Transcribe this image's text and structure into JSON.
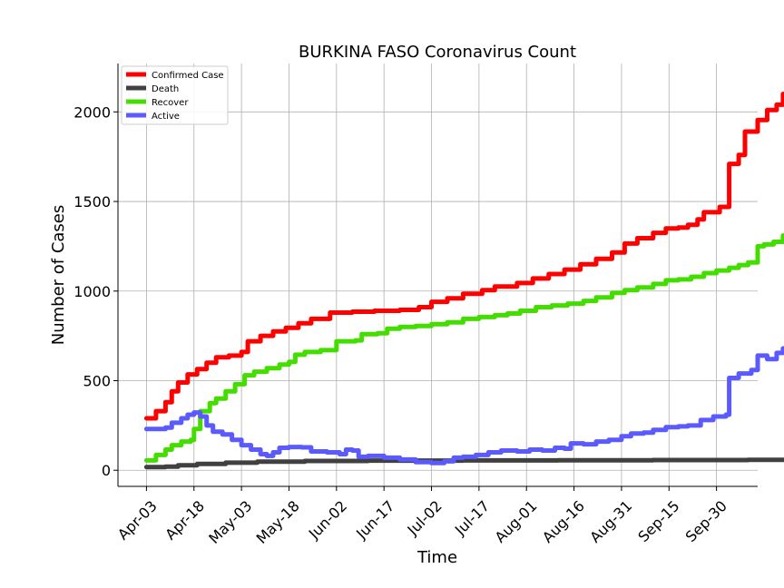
{
  "chart_data": {
    "type": "line",
    "title": "BURKINA FASO Coronavirus Count",
    "xlabel": "Time",
    "ylabel": "Number of Cases",
    "x_ticks": [
      "Apr-03",
      "Apr-18",
      "May-03",
      "May-18",
      "Jun-02",
      "Jun-17",
      "Jul-02",
      "Jul-17",
      "Aug-01",
      "Aug-16",
      "Aug-31",
      "Sep-15",
      "Sep-30"
    ],
    "y_ticks": [
      0,
      500,
      1000,
      1500,
      2000
    ],
    "ylim": [
      -90,
      2270
    ],
    "x_range_days": [
      -9,
      193
    ],
    "grid": true,
    "legend_position": "top-left",
    "series": [
      {
        "name": "Confirmed Case",
        "color": "#ff0000",
        "points": [
          [
            0,
            290
          ],
          [
            3,
            330
          ],
          [
            6,
            380
          ],
          [
            8,
            440
          ],
          [
            10,
            490
          ],
          [
            13,
            535
          ],
          [
            16,
            565
          ],
          [
            19,
            600
          ],
          [
            22,
            630
          ],
          [
            26,
            640
          ],
          [
            30,
            660
          ],
          [
            32,
            720
          ],
          [
            36,
            750
          ],
          [
            40,
            775
          ],
          [
            44,
            795
          ],
          [
            48,
            820
          ],
          [
            52,
            845
          ],
          [
            58,
            880
          ],
          [
            65,
            885
          ],
          [
            72,
            890
          ],
          [
            80,
            895
          ],
          [
            86,
            910
          ],
          [
            90,
            940
          ],
          [
            95,
            960
          ],
          [
            100,
            985
          ],
          [
            106,
            1005
          ],
          [
            110,
            1025
          ],
          [
            117,
            1045
          ],
          [
            122,
            1070
          ],
          [
            127,
            1095
          ],
          [
            132,
            1120
          ],
          [
            137,
            1150
          ],
          [
            142,
            1180
          ],
          [
            147,
            1215
          ],
          [
            151,
            1265
          ],
          [
            155,
            1295
          ],
          [
            160,
            1325
          ],
          [
            164,
            1350
          ],
          [
            168,
            1355
          ],
          [
            171,
            1370
          ],
          [
            174,
            1400
          ],
          [
            176,
            1440
          ],
          [
            181,
            1470
          ],
          [
            184,
            1500
          ],
          [
            184,
            1710
          ],
          [
            187,
            1760
          ],
          [
            189,
            1890
          ],
          [
            193,
            1955
          ],
          [
            196,
            2010
          ],
          [
            199,
            2040
          ],
          [
            201,
            2100
          ],
          [
            203,
            2155
          ]
        ]
      },
      {
        "name": "Death",
        "color": "#404040",
        "points": [
          [
            0,
            18
          ],
          [
            6,
            20
          ],
          [
            10,
            28
          ],
          [
            16,
            35
          ],
          [
            25,
            42
          ],
          [
            35,
            48
          ],
          [
            50,
            52
          ],
          [
            70,
            54
          ],
          [
            100,
            55
          ],
          [
            130,
            56
          ],
          [
            160,
            57
          ],
          [
            190,
            58
          ],
          [
            203,
            60
          ]
        ]
      },
      {
        "name": "Recover",
        "color": "#44dd00",
        "points": [
          [
            0,
            55
          ],
          [
            3,
            85
          ],
          [
            6,
            115
          ],
          [
            8,
            140
          ],
          [
            11,
            160
          ],
          [
            14,
            170
          ],
          [
            15,
            230
          ],
          [
            17,
            330
          ],
          [
            20,
            375
          ],
          [
            22,
            400
          ],
          [
            25,
            440
          ],
          [
            28,
            480
          ],
          [
            31,
            530
          ],
          [
            34,
            550
          ],
          [
            38,
            570
          ],
          [
            42,
            590
          ],
          [
            45,
            605
          ],
          [
            47,
            645
          ],
          [
            50,
            660
          ],
          [
            55,
            670
          ],
          [
            60,
            720
          ],
          [
            66,
            725
          ],
          [
            68,
            760
          ],
          [
            73,
            765
          ],
          [
            76,
            790
          ],
          [
            80,
            800
          ],
          [
            85,
            805
          ],
          [
            90,
            815
          ],
          [
            95,
            825
          ],
          [
            100,
            845
          ],
          [
            105,
            855
          ],
          [
            110,
            865
          ],
          [
            114,
            875
          ],
          [
            118,
            890
          ],
          [
            123,
            910
          ],
          [
            128,
            920
          ],
          [
            133,
            930
          ],
          [
            138,
            945
          ],
          [
            142,
            965
          ],
          [
            147,
            990
          ],
          [
            151,
            1005
          ],
          [
            155,
            1020
          ],
          [
            160,
            1040
          ],
          [
            164,
            1060
          ],
          [
            168,
            1065
          ],
          [
            172,
            1080
          ],
          [
            176,
            1100
          ],
          [
            180,
            1115
          ],
          [
            184,
            1130
          ],
          [
            187,
            1145
          ],
          [
            190,
            1160
          ],
          [
            193,
            1250
          ],
          [
            195,
            1260
          ],
          [
            198,
            1275
          ],
          [
            201,
            1310
          ],
          [
            203,
            1395
          ]
        ]
      },
      {
        "name": "Active",
        "color": "#5a5aff",
        "points": [
          [
            0,
            230
          ],
          [
            6,
            238
          ],
          [
            8,
            265
          ],
          [
            11,
            290
          ],
          [
            13,
            310
          ],
          [
            15,
            322
          ],
          [
            17,
            300
          ],
          [
            19,
            250
          ],
          [
            21,
            215
          ],
          [
            24,
            200
          ],
          [
            27,
            170
          ],
          [
            30,
            140
          ],
          [
            33,
            115
          ],
          [
            36,
            90
          ],
          [
            38,
            80
          ],
          [
            40,
            100
          ],
          [
            42,
            125
          ],
          [
            45,
            130
          ],
          [
            49,
            128
          ],
          [
            52,
            105
          ],
          [
            57,
            100
          ],
          [
            61,
            90
          ],
          [
            63,
            115
          ],
          [
            65,
            110
          ],
          [
            67,
            75
          ],
          [
            70,
            80
          ],
          [
            75,
            70
          ],
          [
            80,
            60
          ],
          [
            85,
            45
          ],
          [
            90,
            40
          ],
          [
            94,
            50
          ],
          [
            97,
            70
          ],
          [
            100,
            75
          ],
          [
            104,
            85
          ],
          [
            108,
            100
          ],
          [
            112,
            110
          ],
          [
            117,
            105
          ],
          [
            121,
            115
          ],
          [
            125,
            110
          ],
          [
            129,
            125
          ],
          [
            132,
            120
          ],
          [
            134,
            150
          ],
          [
            138,
            145
          ],
          [
            142,
            160
          ],
          [
            146,
            170
          ],
          [
            150,
            190
          ],
          [
            153,
            205
          ],
          [
            157,
            210
          ],
          [
            160,
            225
          ],
          [
            164,
            240
          ],
          [
            168,
            245
          ],
          [
            171,
            250
          ],
          [
            175,
            280
          ],
          [
            179,
            300
          ],
          [
            183,
            310
          ],
          [
            184,
            330
          ],
          [
            184,
            515
          ],
          [
            187,
            540
          ],
          [
            191,
            560
          ],
          [
            193,
            640
          ],
          [
            196,
            620
          ],
          [
            199,
            655
          ],
          [
            201,
            680
          ],
          [
            203,
            690
          ]
        ]
      }
    ]
  }
}
